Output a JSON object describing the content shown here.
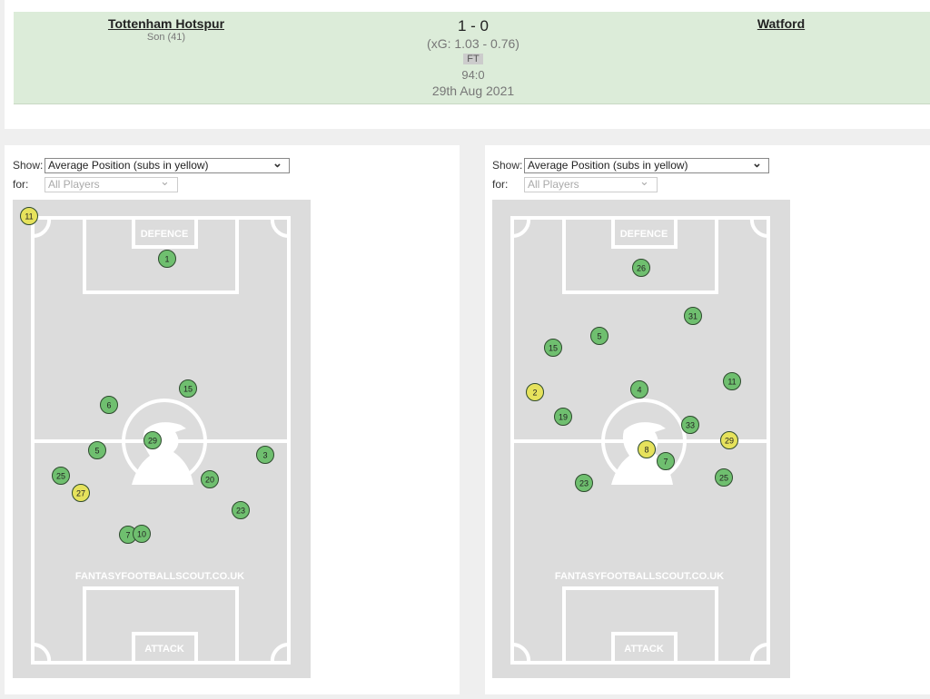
{
  "match": {
    "home": {
      "team": "Tottenham Hotspur",
      "scorers": "Son (41)"
    },
    "score": "1 - 0",
    "xg": "(xG:  1.03 - 0.76)",
    "status": "FT",
    "time": "94:0",
    "date": "29th Aug 2021",
    "away": {
      "team": "Watford"
    }
  },
  "panels": [
    {
      "show_label": "Show:",
      "show_value": "Average Position (subs in yellow)",
      "for_label": "for:",
      "for_value": "All Players",
      "pitch": {
        "top_label": "DEFENCE",
        "watermark": "FANTASYFOOTBALLSCOUT.CO.UK",
        "bottom_label": "ATTACK"
      },
      "players": [
        {
          "number": 11,
          "color": "#e6e25c"
        },
        {
          "number": 1,
          "color": "#6fbf6f"
        },
        {
          "number": 15,
          "color": "#6fbf6f"
        },
        {
          "number": 6,
          "color": "#6fbf6f"
        },
        {
          "number": 29,
          "color": "#6fbf6f"
        },
        {
          "number": 5,
          "color": "#6fbf6f"
        },
        {
          "number": 3,
          "color": "#6fbf6f"
        },
        {
          "number": 25,
          "color": "#6fbf6f"
        },
        {
          "number": 20,
          "color": "#6fbf6f"
        },
        {
          "number": 27,
          "color": "#e6e25c"
        },
        {
          "number": 23,
          "color": "#6fbf6f"
        },
        {
          "number": 7,
          "color": "#6fbf6f"
        },
        {
          "number": 10,
          "color": "#6fbf6f"
        }
      ]
    },
    {
      "show_label": "Show:",
      "show_value": "Average Position (subs in yellow)",
      "for_label": "for:",
      "for_value": "All Players",
      "pitch": {
        "top_label": "DEFENCE",
        "watermark": "FANTASYFOOTBALLSCOUT.CO.UK",
        "bottom_label": "ATTACK"
      },
      "players": [
        {
          "number": 26,
          "color": "#6fbf6f"
        },
        {
          "number": 31,
          "color": "#6fbf6f"
        },
        {
          "number": 5,
          "color": "#6fbf6f"
        },
        {
          "number": 15,
          "color": "#6fbf6f"
        },
        {
          "number": 11,
          "color": "#6fbf6f"
        },
        {
          "number": 2,
          "color": "#e6e25c"
        },
        {
          "number": 4,
          "color": "#6fbf6f"
        },
        {
          "number": 19,
          "color": "#6fbf6f"
        },
        {
          "number": 33,
          "color": "#6fbf6f"
        },
        {
          "number": 29,
          "color": "#e6e25c"
        },
        {
          "number": 8,
          "color": "#e6e25c"
        },
        {
          "number": 7,
          "color": "#6fbf6f"
        },
        {
          "number": 25,
          "color": "#6fbf6f"
        },
        {
          "number": 23,
          "color": "#6fbf6f"
        }
      ]
    }
  ]
}
